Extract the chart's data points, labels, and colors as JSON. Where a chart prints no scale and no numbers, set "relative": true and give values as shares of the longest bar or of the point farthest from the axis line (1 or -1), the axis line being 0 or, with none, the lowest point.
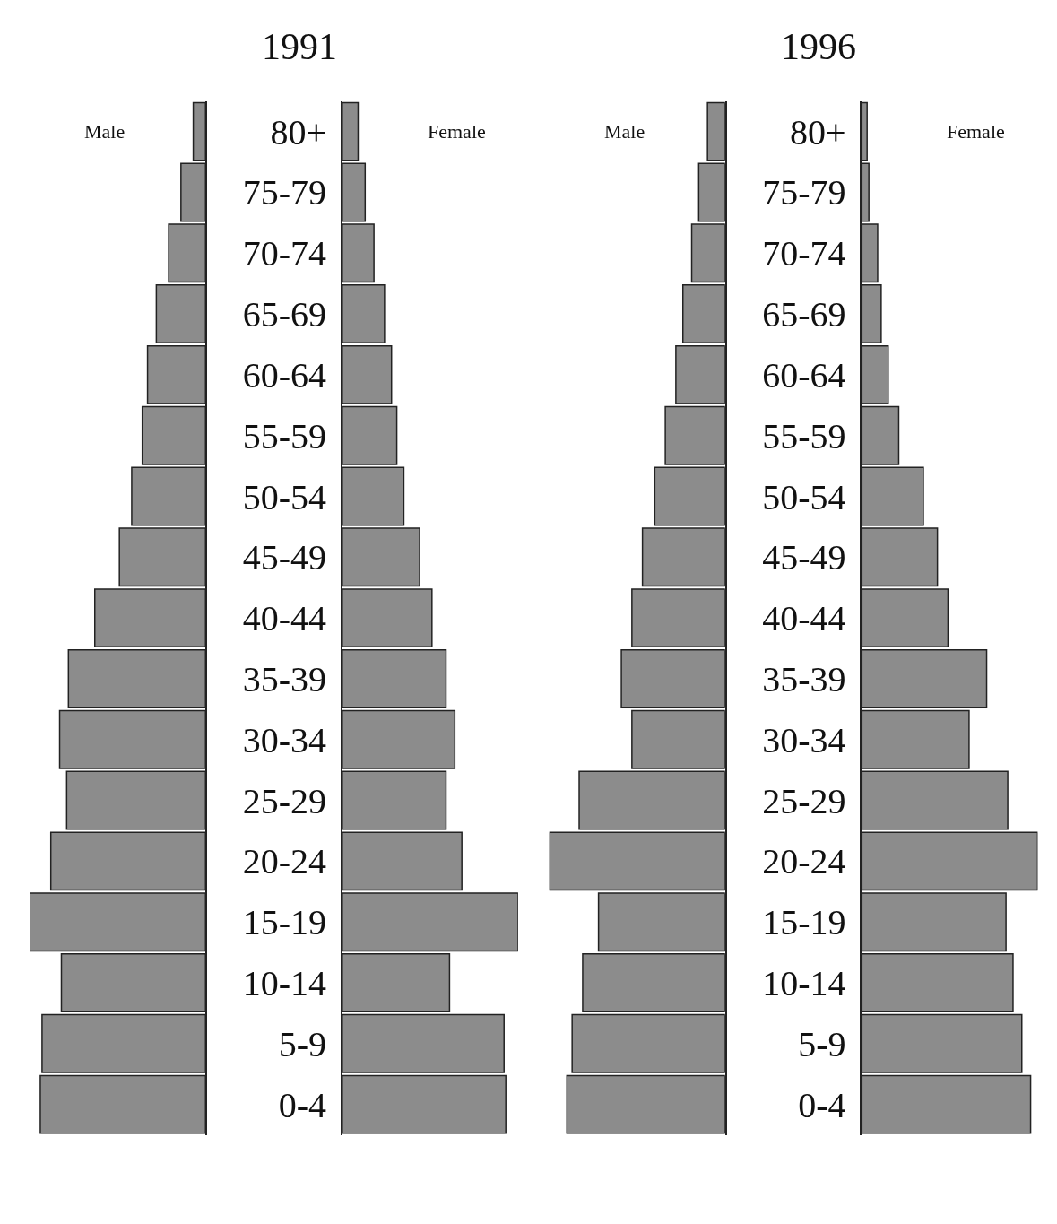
{
  "chart_data": [
    {
      "type": "bar",
      "orientation": "horizontal",
      "relative": true,
      "categories": [
        null,
        null,
        null,
        null,
        null,
        null,
        null,
        null,
        null,
        null,
        null,
        null,
        null,
        null,
        null,
        null,
        null
      ],
      "series": [
        {
          "name": "Male",
          "color": "#8c8c8c",
          "values": [
            0.07,
            0.14,
            0.21,
            0.28,
            0.33,
            0.36,
            0.42,
            0.49,
            0.63,
            0.78,
            0.83,
            0.79,
            0.88,
            1.0,
            0.82,
            0.93,
            0.94
          ]
        }
      ]
    },
    {
      "type": "bar",
      "title": "1991",
      "orientation": "horizontal",
      "relative": true,
      "categories": [
        "80+",
        "75-79",
        "70-74",
        "65-69",
        "60-64",
        "55-59",
        "50-54",
        "45-49",
        "40-44",
        "35-39",
        "30-34",
        "25-29",
        "20-24",
        "15-19",
        "10-14",
        "5-9",
        "0-4"
      ],
      "series": [
        {
          "name": "Female",
          "color": "#8c8c8c",
          "values": [
            0.09,
            0.13,
            0.18,
            0.24,
            0.28,
            0.31,
            0.35,
            0.44,
            0.51,
            0.59,
            0.64,
            0.59,
            0.68,
            1.0,
            0.61,
            0.92,
            0.93
          ]
        }
      ]
    },
    {
      "type": "bar",
      "orientation": "horizontal",
      "relative": true,
      "categories": [
        null,
        null,
        null,
        null,
        null,
        null,
        null,
        null,
        null,
        null,
        null,
        null,
        null,
        null,
        null,
        null,
        null
      ],
      "series": [
        {
          "name": "Male",
          "color": "#8c8c8c",
          "values": [
            0.1,
            0.15,
            0.19,
            0.24,
            0.28,
            0.34,
            0.4,
            0.47,
            0.53,
            0.59,
            0.53,
            0.83,
            1.0,
            0.72,
            0.81,
            0.87,
            0.9
          ]
        }
      ]
    },
    {
      "type": "bar",
      "title": "1996",
      "orientation": "horizontal",
      "relative": true,
      "categories": [
        "80+",
        "75-79",
        "70-74",
        "65-69",
        "60-64",
        "55-59",
        "50-54",
        "45-49",
        "40-44",
        "35-39",
        "30-34",
        "25-29",
        "20-24",
        "15-19",
        "10-14",
        "5-9",
        "0-4"
      ],
      "series": [
        {
          "name": "Female",
          "color": "#8c8c8c",
          "values": [
            0.03,
            0.04,
            0.09,
            0.11,
            0.15,
            0.21,
            0.35,
            0.43,
            0.49,
            0.71,
            0.61,
            0.83,
            1.0,
            0.82,
            0.86,
            0.91,
            0.96
          ]
        }
      ]
    }
  ]
}
